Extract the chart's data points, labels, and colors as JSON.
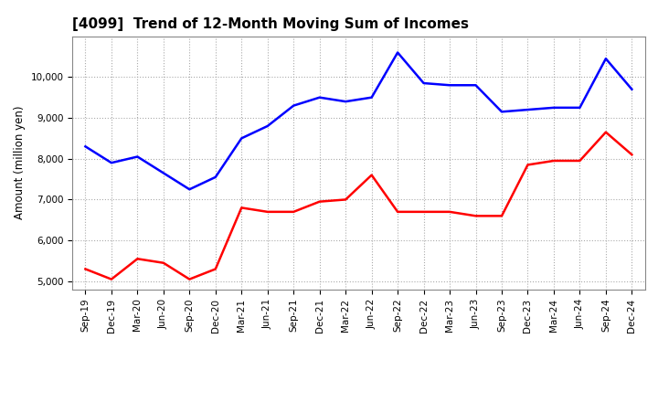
{
  "title": "[4099]  Trend of 12-Month Moving Sum of Incomes",
  "ylabel": "Amount (million yen)",
  "background_color": "#ffffff",
  "grid_color": "#aaaaaa",
  "x_labels": [
    "Sep-19",
    "Dec-19",
    "Mar-20",
    "Jun-20",
    "Sep-20",
    "Dec-20",
    "Mar-21",
    "Jun-21",
    "Sep-21",
    "Dec-21",
    "Mar-22",
    "Jun-22",
    "Sep-22",
    "Dec-22",
    "Mar-23",
    "Jun-23",
    "Sep-23",
    "Dec-23",
    "Mar-24",
    "Jun-24",
    "Sep-24",
    "Dec-24"
  ],
  "ordinary_income": [
    8300,
    7900,
    8050,
    7650,
    7250,
    7550,
    8500,
    8800,
    9300,
    9500,
    9400,
    9500,
    10600,
    9850,
    9800,
    9800,
    9150,
    9200,
    9250,
    9250,
    10450,
    9700
  ],
  "net_income": [
    5300,
    5050,
    5550,
    5450,
    5050,
    5300,
    6800,
    6700,
    6700,
    6950,
    7000,
    7600,
    6700,
    6700,
    6700,
    6600,
    6600,
    7850,
    7950,
    7950,
    8650,
    8100
  ],
  "ordinary_color": "#0000ff",
  "net_color": "#ff0000",
  "ylim_min": 4800,
  "ylim_max": 11000,
  "yticks": [
    5000,
    6000,
    7000,
    8000,
    9000,
    10000
  ],
  "line_width": 1.8,
  "title_fontsize": 11,
  "tick_fontsize": 7.5,
  "ylabel_fontsize": 8.5,
  "legend_fontsize": 9
}
